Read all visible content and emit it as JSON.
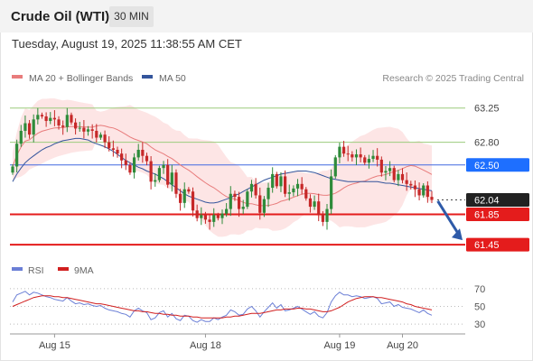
{
  "header": {
    "instrument": "Crude Oil (WTI)",
    "timeframe": "30 MIN",
    "datetime": "Tuesday, August 19, 2025 11:38:55 AM CET"
  },
  "colors": {
    "ma20": "#e87c7c",
    "bollinger_fill": "#fde0e0",
    "ma50": "#34559c",
    "candle_up": "#2e8b3a",
    "candle_down": "#c62828",
    "resistance_line": "#9ccc7c",
    "pivot_line": "#4169e1",
    "support_line": "#e41c1c",
    "current_price_tag": "#222222",
    "pivot_tag": "#1e6fff",
    "support_tag": "#e41c1c",
    "rsi": "#6b7fd6",
    "rsi_ma": "#d11f1f",
    "arrow": "#2e5aa8"
  },
  "chart_data": [
    {
      "type": "candlestick",
      "title": "",
      "legend": [
        {
          "label": "MA 20 + Bollinger Bands",
          "color": "#e87c7c"
        },
        {
          "label": "MA 50",
          "color": "#34559c"
        }
      ],
      "legend_placement": "top-left",
      "copyright": "Research © 2025 Trading Central",
      "ylim": [
        61.38,
        63.33
      ],
      "x_ticks": [
        {
          "label": "Aug 15",
          "index": 10
        },
        {
          "label": "Aug 18",
          "index": 46
        },
        {
          "label": "Aug 19",
          "index": 78
        },
        {
          "label": "Aug 20",
          "index": 93
        }
      ],
      "levels": [
        {
          "value": 63.25,
          "label": "63.25",
          "kind": "resistance"
        },
        {
          "value": 62.8,
          "label": "62.80",
          "kind": "resistance"
        },
        {
          "value": 62.5,
          "label": "62.50",
          "kind": "pivot"
        },
        {
          "value": 62.04,
          "label": "62.04",
          "kind": "last_price"
        },
        {
          "value": 61.85,
          "label": "61.85",
          "kind": "support"
        },
        {
          "value": 61.45,
          "label": "61.45",
          "kind": "support"
        }
      ],
      "forecast_arrow": {
        "from": {
          "index": 101,
          "value": 62.0
        },
        "to": {
          "index": 111,
          "value": 61.5
        }
      },
      "closes": [
        62.48,
        62.78,
        62.95,
        63.05,
        62.9,
        63.1,
        63.16,
        63.14,
        63.08,
        63.12,
        63.1,
        63.02,
        63.0,
        63.16,
        63.06,
        62.98,
        62.99,
        62.94,
        62.97,
        62.95,
        62.86,
        62.9,
        62.8,
        62.72,
        62.7,
        62.65,
        62.56,
        62.5,
        62.4,
        62.6,
        62.7,
        62.62,
        62.55,
        62.28,
        62.3,
        62.46,
        62.5,
        62.24,
        62.4,
        62.12,
        62.0,
        62.18,
        62.15,
        61.9,
        61.8,
        61.84,
        61.78,
        61.75,
        61.84,
        61.8,
        61.86,
        61.92,
        62.12,
        62.08,
        61.92,
        61.95,
        62.15,
        62.25,
        62.1,
        61.87,
        62.05,
        62.2,
        62.38,
        62.22,
        62.35,
        62.12,
        62.14,
        62.19,
        62.25,
        62.18,
        62.06,
        61.95,
        62.02,
        61.85,
        61.75,
        61.92,
        62.35,
        62.6,
        62.74,
        62.65,
        62.64,
        62.6,
        62.64,
        62.6,
        62.53,
        62.58,
        62.62,
        62.57,
        62.4,
        62.42,
        62.46,
        62.3,
        62.38,
        62.3,
        62.25,
        62.23,
        62.18,
        62.1,
        62.23,
        62.08,
        62.04
      ],
      "ma50": [
        62.28,
        62.38,
        62.46,
        62.53,
        62.58,
        62.62,
        62.66,
        62.7,
        62.73,
        62.75,
        62.78,
        62.8,
        62.82,
        62.83,
        62.84,
        62.85,
        62.85,
        62.84,
        62.83,
        62.8,
        62.78,
        62.76,
        62.74,
        62.71,
        62.68,
        62.64,
        62.6,
        62.56,
        62.53,
        62.5,
        62.47,
        62.45,
        62.42,
        62.4,
        62.38,
        62.35,
        62.32,
        62.28,
        62.24,
        62.2,
        62.16,
        62.12,
        62.09,
        62.07,
        62.05,
        62.03,
        62.01,
        62.0,
        62.0,
        62.01,
        62.03,
        62.05,
        62.07,
        62.1,
        62.12,
        62.15,
        62.18,
        62.21,
        62.24,
        62.27,
        62.3,
        62.32,
        62.34,
        62.36,
        62.38,
        62.39,
        62.4,
        62.41,
        62.42,
        62.42,
        62.42,
        62.41,
        62.4,
        62.38,
        62.36,
        62.34,
        62.32,
        62.31,
        62.3,
        62.29,
        62.28,
        62.28,
        62.28,
        62.28,
        62.28,
        62.28,
        62.28,
        62.28,
        62.27,
        62.26,
        62.26,
        62.25,
        62.24,
        62.23,
        62.22,
        62.21,
        62.2,
        62.19,
        62.18,
        62.17,
        62.16
      ]
    },
    {
      "type": "line",
      "title": "RSI",
      "legend": [
        {
          "label": "RSI",
          "color": "#6b7fd6"
        },
        {
          "label": "9MA",
          "color": "#d11f1f"
        }
      ],
      "ylim": [
        25,
        75
      ],
      "y_ticks": [
        30,
        50,
        70
      ],
      "series": [
        {
          "name": "RSI",
          "values": [
            55,
            63,
            65,
            67,
            63,
            66,
            65,
            63,
            61,
            60,
            58,
            57,
            56,
            60,
            56,
            53,
            54,
            52,
            53,
            51,
            50,
            51,
            48,
            46,
            45,
            44,
            42,
            41,
            38,
            45,
            48,
            45,
            43,
            35,
            37,
            43,
            45,
            38,
            42,
            36,
            34,
            40,
            39,
            34,
            32,
            35,
            33,
            33,
            37,
            35,
            38,
            40,
            46,
            44,
            40,
            41,
            47,
            50,
            45,
            38,
            44,
            49,
            54,
            48,
            52,
            45,
            46,
            48,
            50,
            47,
            44,
            41,
            44,
            39,
            37,
            43,
            55,
            62,
            66,
            63,
            63,
            61,
            62,
            61,
            59,
            60,
            61,
            59,
            53,
            54,
            55,
            50,
            52,
            49,
            48,
            47,
            45,
            43,
            46,
            42,
            40
          ]
        },
        {
          "name": "9MA",
          "values": [
            50,
            52,
            54,
            56,
            58,
            60,
            61,
            62,
            62,
            62,
            61,
            61,
            60,
            60,
            59,
            58,
            57,
            56,
            55,
            54,
            53,
            53,
            52,
            51,
            50,
            49,
            48,
            47,
            46,
            45,
            45,
            44,
            44,
            43,
            42,
            42,
            41,
            41,
            40,
            40,
            39,
            39,
            39,
            38,
            38,
            37,
            37,
            37,
            37,
            37,
            37,
            38,
            38,
            39,
            39,
            40,
            41,
            42,
            42,
            42,
            43,
            44,
            45,
            46,
            46,
            47,
            47,
            47,
            48,
            48,
            47,
            47,
            46,
            45,
            44,
            44,
            45,
            47,
            49,
            52,
            55,
            57,
            59,
            60,
            61,
            61,
            61,
            60,
            60,
            59,
            58,
            57,
            56,
            55,
            53,
            52,
            50,
            49,
            48,
            47,
            46
          ]
        }
      ]
    }
  ]
}
